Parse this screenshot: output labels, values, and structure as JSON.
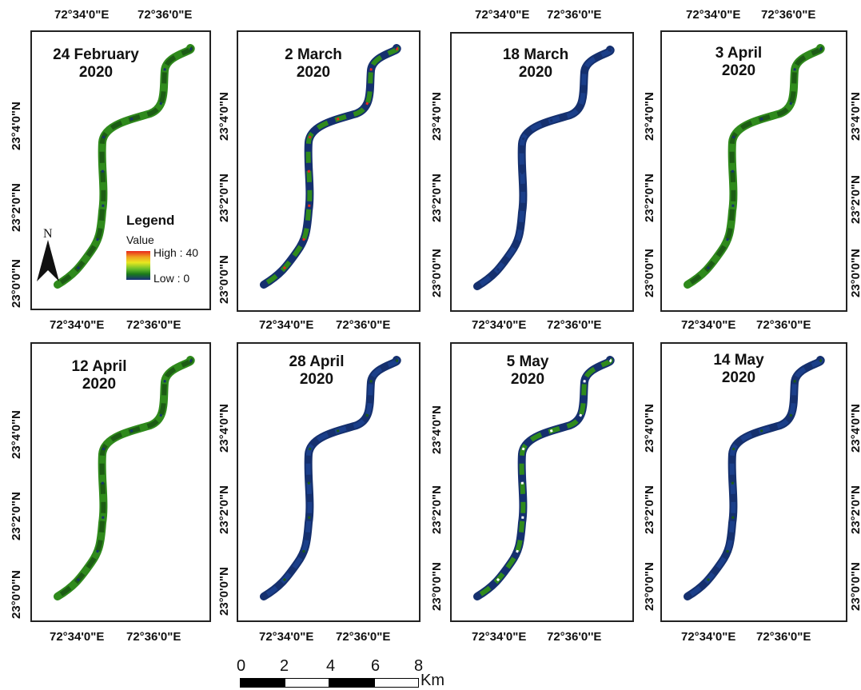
{
  "panels": [
    {
      "title_line1": "24 February",
      "title_line2": "2020",
      "palette": "green"
    },
    {
      "title_line1": "2 March",
      "title_line2": "2020",
      "palette": "blue-green-red"
    },
    {
      "title_line1": "18 March",
      "title_line2": "2020",
      "palette": "blue"
    },
    {
      "title_line1": "3 April",
      "title_line2": "2020",
      "palette": "green"
    },
    {
      "title_line1": "12 April",
      "title_line2": "2020",
      "palette": "green"
    },
    {
      "title_line1": "28 April",
      "title_line2": "2020",
      "palette": "blue-green"
    },
    {
      "title_line1": "5 May",
      "title_line2": "2020",
      "palette": "blue-green-white"
    },
    {
      "title_line1": "14 May",
      "title_line2": "2020",
      "palette": "blue-green"
    }
  ],
  "axis_labels": {
    "lon_left": "72°34'0\"E",
    "lon_right": "72°36'0\"E",
    "lon_right_alt": "72°36'0''E",
    "lat_top": "23°4'0\"N",
    "lat_mid": "23°2'0\"N",
    "lat_bottom": "23°0'0\"N"
  },
  "legend": {
    "title": "Legend",
    "subtitle": "Value",
    "high": "High : 40",
    "low": "Low : 0",
    "ramp_colors": [
      "#e8261c",
      "#f0a020",
      "#e8e820",
      "#6abf2a",
      "#1a7a1a",
      "#1a2f7a"
    ]
  },
  "north_arrow": {
    "label": "N"
  },
  "scale_bar": {
    "ticks": [
      "0",
      "2",
      "4",
      "6",
      "8"
    ],
    "unit": "Km"
  },
  "colors": {
    "green": "#2f8a1c",
    "dark_green": "#1c5c14",
    "blue": "#1b3f8a",
    "navy": "#15306e",
    "red": "#e8261c",
    "yellow": "#e8e820"
  }
}
